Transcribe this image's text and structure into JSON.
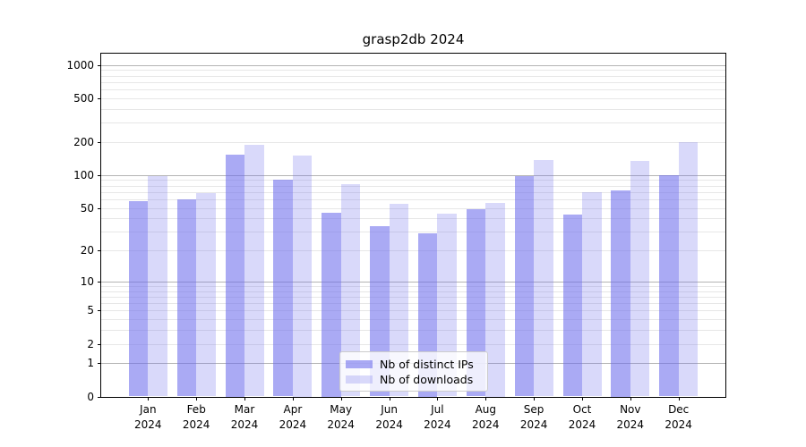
{
  "figure": {
    "title": "grasp2db 2024"
  },
  "chart_data": {
    "type": "bar",
    "title": "grasp2db 2024",
    "subtitle": "",
    "xlabel": "",
    "ylabel": "",
    "yscale": "log1p",
    "ylim": [
      0,
      1280
    ],
    "grid": true,
    "legend_position": "bottom-center",
    "categories": [
      {
        "month": "Jan",
        "year": "2024"
      },
      {
        "month": "Feb",
        "year": "2024"
      },
      {
        "month": "Mar",
        "year": "2024"
      },
      {
        "month": "Apr",
        "year": "2024"
      },
      {
        "month": "May",
        "year": "2024"
      },
      {
        "month": "Jun",
        "year": "2024"
      },
      {
        "month": "Jul",
        "year": "2024"
      },
      {
        "month": "Aug",
        "year": "2024"
      },
      {
        "month": "Sep",
        "year": "2024"
      },
      {
        "month": "Oct",
        "year": "2024"
      },
      {
        "month": "Nov",
        "year": "2024"
      },
      {
        "month": "Dec",
        "year": "2024"
      }
    ],
    "series": [
      {
        "name": "Nb of distinct IPs",
        "color": "rgba(108,108,236,0.58)",
        "values": [
          58,
          60,
          155,
          91,
          45,
          34,
          29,
          49,
          97,
          43,
          73,
          100
        ]
      },
      {
        "name": "Nb of downloads",
        "color": "rgba(108,108,236,0.26)",
        "values": [
          97,
          68,
          188,
          152,
          83,
          54,
          44,
          56,
          137,
          70,
          135,
          200
        ]
      }
    ],
    "yticks_labeled": [
      0,
      1,
      2,
      5,
      10,
      20,
      50,
      100,
      200,
      500,
      1000
    ],
    "grid_major": [
      1,
      10,
      100,
      1000
    ],
    "grid_minor": [
      2,
      3,
      4,
      5,
      6,
      7,
      8,
      9,
      20,
      30,
      40,
      50,
      60,
      70,
      80,
      90,
      200,
      300,
      400,
      500,
      600,
      700,
      800,
      900
    ],
    "colors": {
      "grid_major": "#b4b4b4",
      "grid_minor": "#e7e7e7",
      "spine": "#000000",
      "text": "#000000"
    }
  }
}
